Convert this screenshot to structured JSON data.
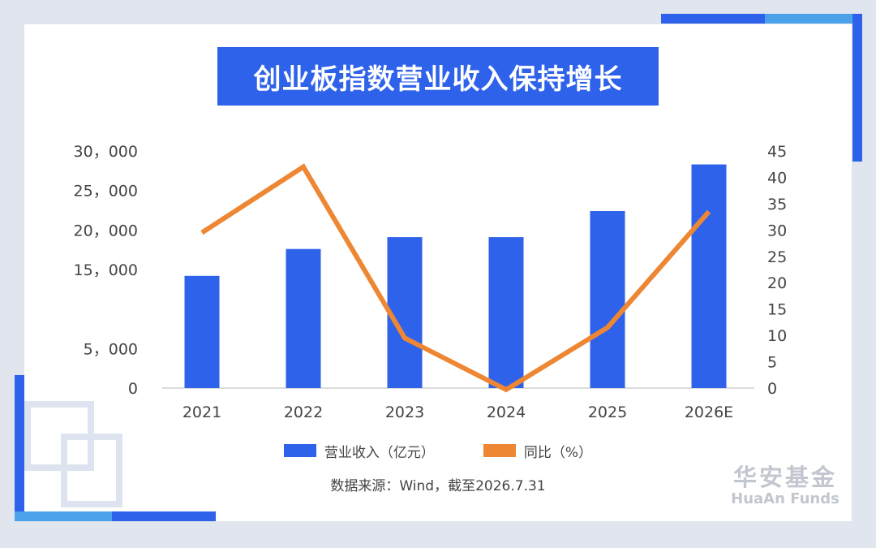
{
  "title": "创业板指数营业收入保持增长",
  "source": "数据来源：Wind，截至2026.7.31",
  "logo": {
    "cn": "华安基金",
    "en": "HuaAn Funds"
  },
  "colors": {
    "bar": "#2f62ea",
    "line": "#ee8733",
    "accent": "#2f62ea"
  },
  "chart_data": {
    "type": "bar",
    "categories": [
      "2021",
      "2022",
      "2023",
      "2024",
      "2025",
      "2026E"
    ],
    "series": [
      {
        "name": "营业收入（亿元）",
        "type": "bar",
        "axis": "left",
        "values": [
          14200,
          17600,
          19100,
          19100,
          22400,
          28300
        ]
      },
      {
        "name": "同比（%）",
        "type": "line",
        "axis": "right",
        "values": [
          29.5,
          42,
          9.5,
          -0.3,
          11.5,
          33.5
        ]
      }
    ],
    "y_left": {
      "range": [
        0,
        30000
      ],
      "ticks": [
        0,
        5000,
        15000,
        20000,
        25000,
        30000
      ],
      "tick_labels": [
        "0",
        "5，000",
        "15，000",
        "20，000",
        "25，000",
        "30，000"
      ]
    },
    "y_right": {
      "range": [
        0,
        45
      ],
      "ticks": [
        0,
        5,
        10,
        15,
        20,
        25,
        30,
        35,
        40,
        45
      ],
      "tick_labels": [
        "0",
        "5",
        "10",
        "15",
        "20",
        "25",
        "30",
        "35",
        "40",
        "45"
      ]
    },
    "grid": false,
    "legend": "bottom"
  }
}
